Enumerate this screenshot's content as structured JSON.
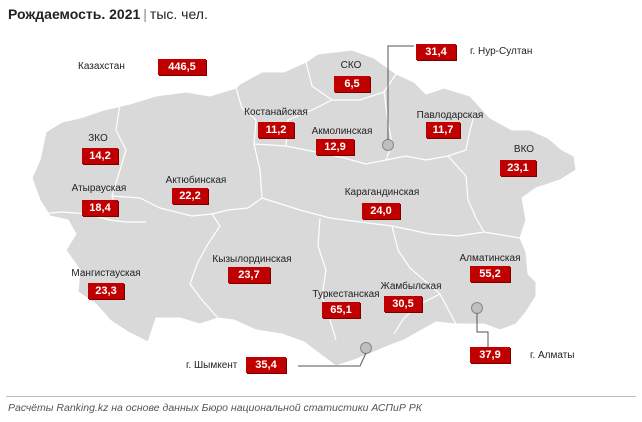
{
  "title": {
    "main": "Рождаемость. 2021",
    "unit": "тыс. чел."
  },
  "country": {
    "label": "Казахстан",
    "value": "446,5"
  },
  "regions": [
    {
      "id": "sko",
      "label": "СКО",
      "value": "6,5"
    },
    {
      "id": "kostanay",
      "label": "Костанайская",
      "value": "11,2"
    },
    {
      "id": "akmola",
      "label": "Акмолинская",
      "value": "12,9"
    },
    {
      "id": "pavlodar",
      "label": "Павлодарская",
      "value": "11,7"
    },
    {
      "id": "zko",
      "label": "ЗКО",
      "value": "14,2"
    },
    {
      "id": "vko",
      "label": "ВКО",
      "value": "23,1"
    },
    {
      "id": "aktobe",
      "label": "Актюбинская",
      "value": "22,2"
    },
    {
      "id": "atyrau",
      "label": "Атырауская",
      "value": "18,4"
    },
    {
      "id": "karaganda",
      "label": "Карагандинская",
      "value": "24,0"
    },
    {
      "id": "kyzylorda",
      "label": "Кызылординская",
      "value": "23,7"
    },
    {
      "id": "almaty_obl",
      "label": "Алматинская",
      "value": "55,2"
    },
    {
      "id": "mangystau",
      "label": "Мангистауская",
      "value": "23,3"
    },
    {
      "id": "turkestan",
      "label": "Туркестанская",
      "value": "65,1"
    },
    {
      "id": "zhambyl",
      "label": "Жамбылская",
      "value": "30,5"
    }
  ],
  "cities": [
    {
      "id": "nursultan",
      "label": "г. Нур-Султан",
      "value": "31,4"
    },
    {
      "id": "shymkent",
      "label": "г. Шымкент",
      "value": "35,4"
    },
    {
      "id": "almaty",
      "label": "г. Алматы",
      "value": "37,9"
    }
  ],
  "colors": {
    "value_box": "#c00000",
    "map_fill": "#d9d9d9",
    "region_border": "#ffffff"
  },
  "footer": "Расчёты Ranking.kz на основе данных Бюро национальной статистики АСПиР РК"
}
